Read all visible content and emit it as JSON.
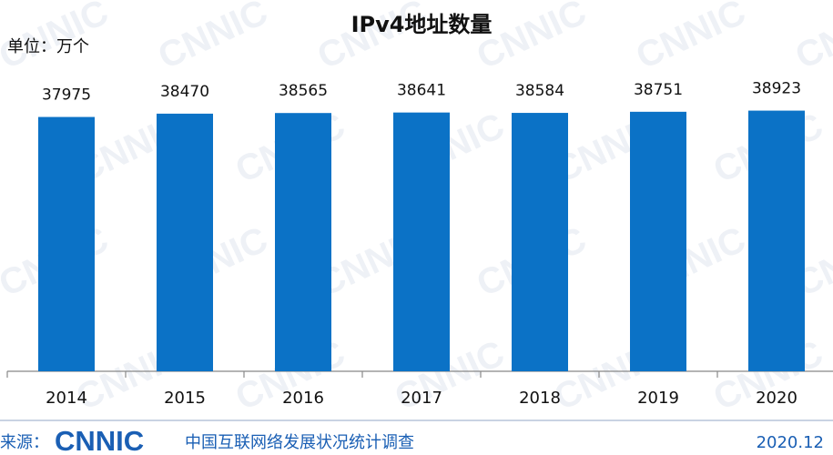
{
  "chart_data": {
    "type": "bar",
    "title": "IPv4地址数量",
    "unit_label": "单位：万个",
    "categories": [
      "2014",
      "2015",
      "2016",
      "2017",
      "2018",
      "2019",
      "2020"
    ],
    "values": [
      37975,
      38470,
      38565,
      38641,
      38584,
      38751,
      38923
    ],
    "color": "#0b72c6",
    "ylim": [
      0,
      39000
    ],
    "grid": false
  },
  "footer": {
    "source_label": "来源：",
    "logo": "CNNIC",
    "survey": "中国互联网络发展状况统计调查",
    "date": "2020.12"
  },
  "watermark": "CNNIC"
}
